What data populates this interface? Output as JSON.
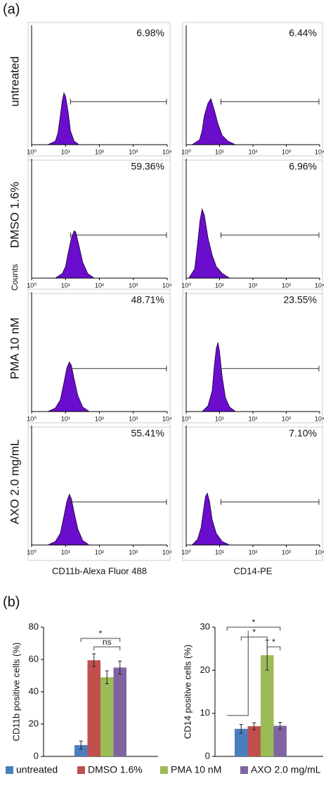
{
  "panel_labels": [
    "(a)",
    "(b)"
  ],
  "counts_label": "Counts",
  "legend": [
    {
      "name": "untreated",
      "color": "#4a7ebf"
    },
    {
      "name": "DMSO 1.6%",
      "color": "#c0504d"
    },
    {
      "name": "PMA 10 nM",
      "color": "#9bbb59"
    },
    {
      "name": "AXO 2.0 mg/mL",
      "color": "#8064a2"
    }
  ],
  "chart_data": [
    {
      "type": "area",
      "ylabel": "untreated",
      "percent": "6.98%",
      "log_x": true,
      "xlim": [
        1,
        10000
      ],
      "ylim": [
        0,
        100
      ],
      "gate": [
        14,
        10000
      ],
      "color": "#6a0dcc",
      "xticks": [
        {
          "value": 1,
          "label": "10⁰"
        },
        {
          "value": 10,
          "label": "10¹"
        },
        {
          "value": 100,
          "label": "10²"
        },
        {
          "value": 1000,
          "label": "10³"
        },
        {
          "value": 10000,
          "label": "10⁴"
        }
      ],
      "x": [
        3,
        5,
        6,
        7,
        8,
        9,
        10,
        12,
        14,
        18,
        25
      ],
      "values": [
        0,
        3,
        10,
        25,
        38,
        45,
        42,
        28,
        12,
        3,
        0
      ]
    },
    {
      "type": "area",
      "percent": "6.44%",
      "log_x": true,
      "xlim": [
        1,
        10000
      ],
      "ylim": [
        0,
        100
      ],
      "gate": [
        11,
        10000
      ],
      "color": "#6a0dcc",
      "xticks": [
        {
          "value": 1,
          "label": "10⁰"
        },
        {
          "value": 10,
          "label": "10¹"
        },
        {
          "value": 100,
          "label": "10²"
        },
        {
          "value": 1000,
          "label": "10³"
        },
        {
          "value": 10000,
          "label": "10⁴"
        }
      ],
      "x": [
        1.5,
        2.5,
        3,
        3.5,
        4.5,
        5.5,
        7,
        9,
        12,
        18,
        30
      ],
      "values": [
        0,
        4,
        12,
        25,
        36,
        40,
        30,
        18,
        8,
        3,
        0
      ]
    },
    {
      "type": "area",
      "ylabel": "DMSO 1.6%",
      "percent": "59.36%",
      "log_x": true,
      "xlim": [
        1,
        10000
      ],
      "ylim": [
        0,
        100
      ],
      "gate": [
        14,
        10000
      ],
      "color": "#6a0dcc",
      "xticks": [
        {
          "value": 1,
          "label": "10⁰"
        },
        {
          "value": 10,
          "label": "10¹"
        },
        {
          "value": 100,
          "label": "10²"
        },
        {
          "value": 1000,
          "label": "10³"
        },
        {
          "value": 10000,
          "label": "10⁴"
        }
      ],
      "x": [
        5,
        8,
        10,
        12,
        15,
        18,
        20,
        25,
        32,
        45,
        70
      ],
      "values": [
        0,
        4,
        10,
        22,
        35,
        41,
        40,
        28,
        14,
        4,
        0
      ]
    },
    {
      "type": "area",
      "percent": "6.96%",
      "log_x": true,
      "xlim": [
        1,
        10000
      ],
      "ylim": [
        0,
        100
      ],
      "gate": [
        11,
        10000
      ],
      "color": "#6a0dcc",
      "xticks": [
        {
          "value": 1,
          "label": "10⁰"
        },
        {
          "value": 10,
          "label": "10¹"
        },
        {
          "value": 100,
          "label": "10²"
        },
        {
          "value": 1000,
          "label": "10³"
        },
        {
          "value": 10000,
          "label": "10⁴"
        }
      ],
      "x": [
        1.2,
        1.8,
        2.2,
        2.6,
        3,
        3.5,
        4.5,
        6,
        8,
        12,
        20
      ],
      "values": [
        0,
        8,
        30,
        50,
        60,
        55,
        35,
        20,
        10,
        4,
        0
      ]
    },
    {
      "type": "area",
      "ylabel": "PMA 10 nM",
      "percent": "48.71%",
      "log_x": true,
      "xlim": [
        1,
        10000
      ],
      "ylim": [
        0,
        100
      ],
      "gate": [
        14,
        10000
      ],
      "color": "#6a0dcc",
      "xticks": [
        {
          "value": 1,
          "label": "10⁰"
        },
        {
          "value": 10,
          "label": "10¹"
        },
        {
          "value": 100,
          "label": "10²"
        },
        {
          "value": 1000,
          "label": "10³"
        },
        {
          "value": 10000,
          "label": "10⁴"
        }
      ],
      "x": [
        3,
        5,
        7,
        9,
        11,
        13,
        15,
        18,
        23,
        32,
        50
      ],
      "values": [
        0,
        3,
        10,
        25,
        38,
        43,
        40,
        28,
        14,
        4,
        0
      ]
    },
    {
      "type": "area",
      "percent": "23.55%",
      "log_x": true,
      "xlim": [
        1,
        10000
      ],
      "ylim": [
        0,
        100
      ],
      "gate": [
        11,
        10000
      ],
      "color": "#6a0dcc",
      "xticks": [
        {
          "value": 1,
          "label": "10⁰"
        },
        {
          "value": 10,
          "label": "10¹"
        },
        {
          "value": 100,
          "label": "10²"
        },
        {
          "value": 1000,
          "label": "10³"
        },
        {
          "value": 10000,
          "label": "10⁴"
        }
      ],
      "x": [
        3,
        4.5,
        6,
        7,
        8,
        9,
        10,
        12,
        15,
        20,
        30
      ],
      "values": [
        0,
        5,
        18,
        40,
        55,
        60,
        52,
        30,
        12,
        4,
        0
      ]
    },
    {
      "type": "area",
      "ylabel": "AXO 2.0 mg/mL",
      "xlabel": "CD11b-Alexa Fluor 488",
      "percent": "55.41%",
      "log_x": true,
      "xlim": [
        1,
        10000
      ],
      "ylim": [
        0,
        100
      ],
      "gate": [
        14,
        10000
      ],
      "color": "#6a0dcc",
      "xticks": [
        {
          "value": 1,
          "label": "10⁰"
        },
        {
          "value": 10,
          "label": "10¹"
        },
        {
          "value": 100,
          "label": "10²"
        },
        {
          "value": 1000,
          "label": "10³"
        },
        {
          "value": 10000,
          "label": "10⁴"
        }
      ],
      "x": [
        3,
        5,
        7,
        9,
        11,
        13,
        15,
        18,
        23,
        32,
        50
      ],
      "values": [
        0,
        3,
        10,
        25,
        38,
        44,
        40,
        28,
        14,
        4,
        0
      ]
    },
    {
      "type": "area",
      "xlabel": "CD14-PE",
      "percent": "7.10%",
      "log_x": true,
      "xlim": [
        1,
        10000
      ],
      "ylim": [
        0,
        100
      ],
      "gate": [
        11,
        10000
      ],
      "color": "#6a0dcc",
      "xticks": [
        {
          "value": 1,
          "label": "10⁰"
        },
        {
          "value": 10,
          "label": "10¹"
        },
        {
          "value": 100,
          "label": "10²"
        },
        {
          "value": 1000,
          "label": "10³"
        },
        {
          "value": 10000,
          "label": "10⁴"
        }
      ],
      "x": [
        1.5,
        2.2,
        2.8,
        3.3,
        3.8,
        4.3,
        5,
        6,
        8,
        12,
        20
      ],
      "values": [
        0,
        5,
        15,
        30,
        42,
        45,
        38,
        22,
        10,
        3,
        0
      ]
    },
    {
      "type": "bar",
      "ylabel": "CD11b positive cells (%)",
      "ylim": [
        0,
        80
      ],
      "yticks": [
        0,
        20,
        40,
        60,
        80
      ],
      "values": [
        7,
        59.5,
        49,
        55
      ],
      "errors": [
        2.5,
        4,
        4,
        4
      ],
      "annotations": [
        "*",
        "ns"
      ]
    },
    {
      "type": "bar",
      "ylabel": "CD14 positive cells (%)",
      "ylim": [
        0,
        30
      ],
      "yticks": [
        0,
        10,
        20,
        30
      ],
      "values": [
        6.4,
        7,
        23.5,
        7.1
      ],
      "errors": [
        1,
        0.8,
        3.5,
        0.8
      ],
      "annotations": [
        "*",
        "*",
        "*"
      ]
    }
  ]
}
